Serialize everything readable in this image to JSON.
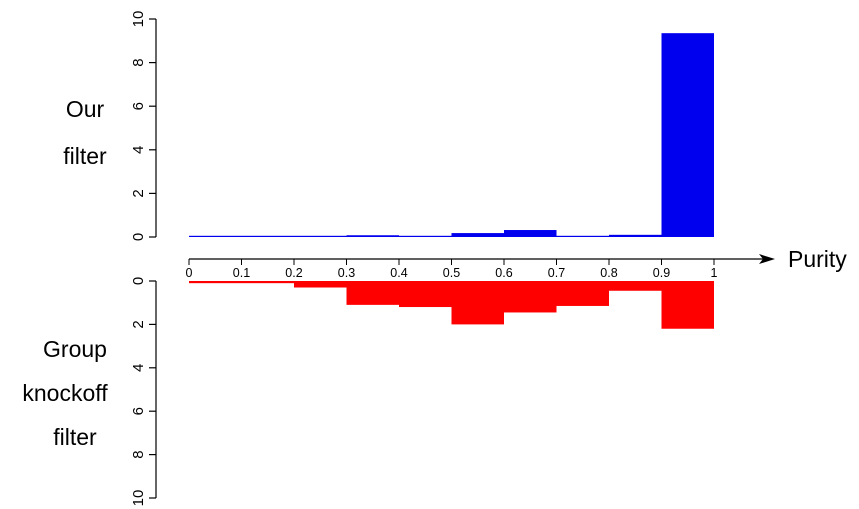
{
  "chart_data": {
    "type": "bar",
    "x_label": "Purity",
    "x_ticks": [
      "0",
      "0.1",
      "0.2",
      "0.3",
      "0.4",
      "0.5",
      "0.6",
      "0.7",
      "0.8",
      "0.9",
      "1"
    ],
    "bins": [
      "0-0.1",
      "0.1-0.2",
      "0.2-0.3",
      "0.3-0.4",
      "0.4-0.5",
      "0.5-0.6",
      "0.6-0.7",
      "0.7-0.8",
      "0.8-0.9",
      "0.9-1"
    ],
    "y_ticks": [
      "0",
      "2",
      "4",
      "6",
      "8",
      "10"
    ],
    "ylim": [
      0,
      10
    ],
    "series": [
      {
        "name": "Our filter",
        "label_lines": [
          "Our",
          "filter"
        ],
        "color": "#0000ee",
        "direction": "up",
        "values": [
          0.02,
          0.02,
          0.02,
          0.08,
          0.03,
          0.18,
          0.32,
          0.02,
          0.1,
          9.35
        ]
      },
      {
        "name": "Group knockoff filter",
        "label_lines": [
          "Group",
          "knockoff",
          "filter"
        ],
        "color": "#ff0000",
        "direction": "down",
        "values": [
          0.1,
          0.1,
          0.3,
          1.1,
          1.2,
          2.0,
          1.45,
          1.15,
          0.45,
          2.2
        ]
      }
    ]
  }
}
